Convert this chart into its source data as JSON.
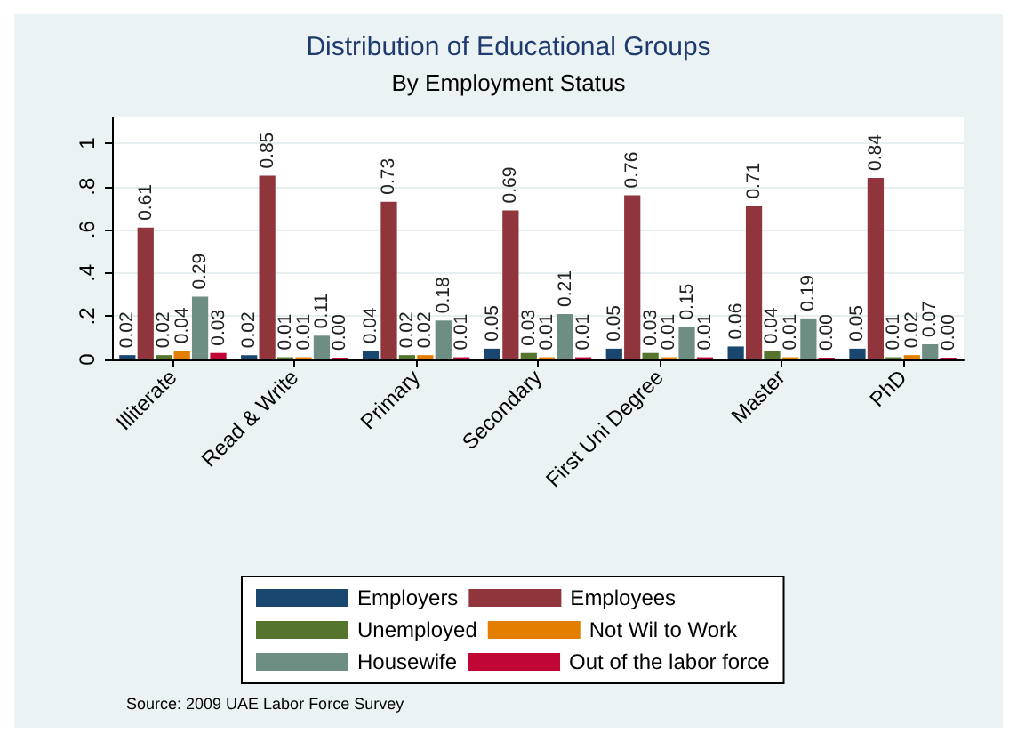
{
  "chart_data": {
    "type": "bar",
    "title": "Distribution of Educational Groups",
    "subtitle": "By Employment Status",
    "categories": [
      "Illiterate",
      "Read & Write",
      "Primary",
      "Secondary",
      "First Uni Degree",
      "Master",
      "PhD"
    ],
    "series": [
      {
        "name": "Employers",
        "color": "#1a476f",
        "values": [
          0.02,
          0.02,
          0.04,
          0.05,
          0.05,
          0.06,
          0.05
        ],
        "value_labels": [
          "0.02",
          "0.02",
          "0.04",
          "0.05",
          "0.05",
          "0.06",
          "0.05"
        ]
      },
      {
        "name": "Employees",
        "color": "#90353b",
        "values": [
          0.61,
          0.85,
          0.73,
          0.69,
          0.76,
          0.71,
          0.84
        ],
        "value_labels": [
          "0.61",
          "0.85",
          "0.73",
          "0.69",
          "0.76",
          "0.71",
          "0.84"
        ]
      },
      {
        "name": "Unemployed",
        "color": "#55752f",
        "values": [
          0.02,
          0.01,
          0.02,
          0.03,
          0.03,
          0.04,
          0.01
        ],
        "value_labels": [
          "0.02",
          "0.01",
          "0.02",
          "0.03",
          "0.03",
          "0.04",
          "0.01"
        ]
      },
      {
        "name": "Not Wil to Work",
        "color": "#e37e00",
        "values": [
          0.04,
          0.01,
          0.02,
          0.01,
          0.01,
          0.01,
          0.02
        ],
        "value_labels": [
          "0.04",
          "0.01",
          "0.02",
          "0.01",
          "0.01",
          "0.01",
          "0.02"
        ]
      },
      {
        "name": "Housewife",
        "color": "#6e8e84",
        "values": [
          0.29,
          0.11,
          0.18,
          0.21,
          0.15,
          0.19,
          0.07
        ],
        "value_labels": [
          "0.29",
          "0.11",
          "0.18",
          "0.21",
          "0.15",
          "0.19",
          "0.07"
        ]
      },
      {
        "name": "Out of the labor force",
        "color": "#c10534",
        "values": [
          0.03,
          0.0,
          0.01,
          0.01,
          0.01,
          0.0,
          0.0
        ],
        "value_labels": [
          "0.03",
          "0.00",
          "0.01",
          "0.01",
          "0.01",
          "0.00",
          "0.00"
        ]
      }
    ],
    "ylim": [
      0,
      1.12
    ],
    "yticks": [
      {
        "value": 0,
        "label": "0"
      },
      {
        "value": 0.2,
        "label": ".2"
      },
      {
        "value": 0.4,
        "label": ".4"
      },
      {
        "value": 0.6,
        "label": ".6"
      },
      {
        "value": 0.8,
        "label": ".8"
      },
      {
        "value": 1,
        "label": "1"
      }
    ],
    "grid": "y",
    "legend": "bottom",
    "annotations": [
      "Source: 2009 UAE Labor Force Survey"
    ]
  }
}
